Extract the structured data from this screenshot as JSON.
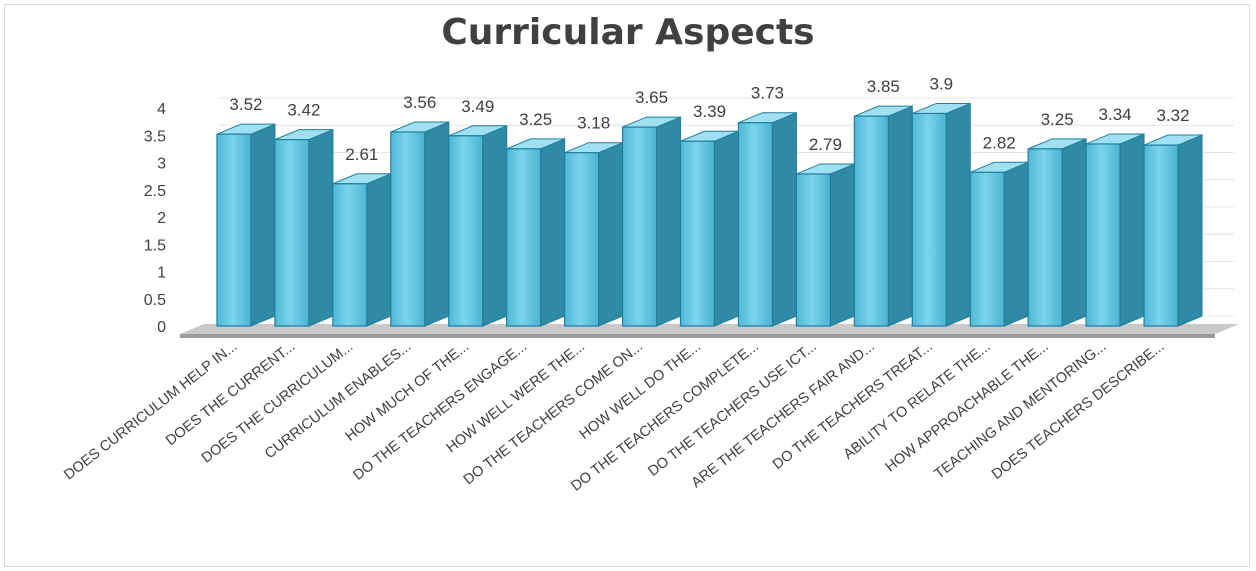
{
  "chart_data": {
    "type": "bar",
    "title": "Curricular Aspects",
    "xlabel": "",
    "ylabel": "",
    "ylim": [
      0,
      4
    ],
    "yticks": [
      "0",
      "0.5",
      "1",
      "1.5",
      "2",
      "2.5",
      "3",
      "3.5",
      "4"
    ],
    "grid": true,
    "legend": "none",
    "categories": [
      "DOES CURRICULUM HELP IN...",
      "DOES THE CURRENT...",
      "DOES THE CURRICULUM...",
      "CURRICULUM ENABLES...",
      "HOW MUCH OF THE...",
      "DO THE TEACHERS ENGAGE...",
      "HOW WELL WERE THE...",
      "DO THE TEACHERS COME ON...",
      "HOW WELL DO THE...",
      "DO THE TEACHERS COMPLETE...",
      "DO THE TEACHERS USE ICT...",
      "ARE THE TEACHERS FAIR AND...",
      "DO THE TEACHERS TREAT...",
      "ABILITY TO RELATE THE...",
      "HOW APPROACHABLE THE...",
      "TEACHING AND MENTORING...",
      "DOES TEACHERS DESCRIBE..."
    ],
    "values": [
      3.52,
      3.42,
      2.61,
      3.56,
      3.49,
      3.25,
      3.18,
      3.65,
      3.39,
      3.73,
      2.79,
      3.85,
      3.9,
      2.82,
      3.25,
      3.34,
      3.32
    ],
    "data_labels": [
      "3.52",
      "3.42",
      "2.61",
      "3.56",
      "3.49",
      "3.25",
      "3.18",
      "3.65",
      "3.39",
      "3.73",
      "2.79",
      "3.85",
      "3.9",
      "2.82",
      "3.25",
      "3.34",
      "3.32"
    ],
    "colors": {
      "bar_front": "#5bc4e0",
      "bar_front_light": "#8fdcef",
      "bar_side": "#2f8aa6",
      "bar_top": "#9fe1f2",
      "bar_outline": "#1f7f9c",
      "floor": "#b3b3b3",
      "grid": "#e4e4e4",
      "text": "#404040"
    }
  }
}
